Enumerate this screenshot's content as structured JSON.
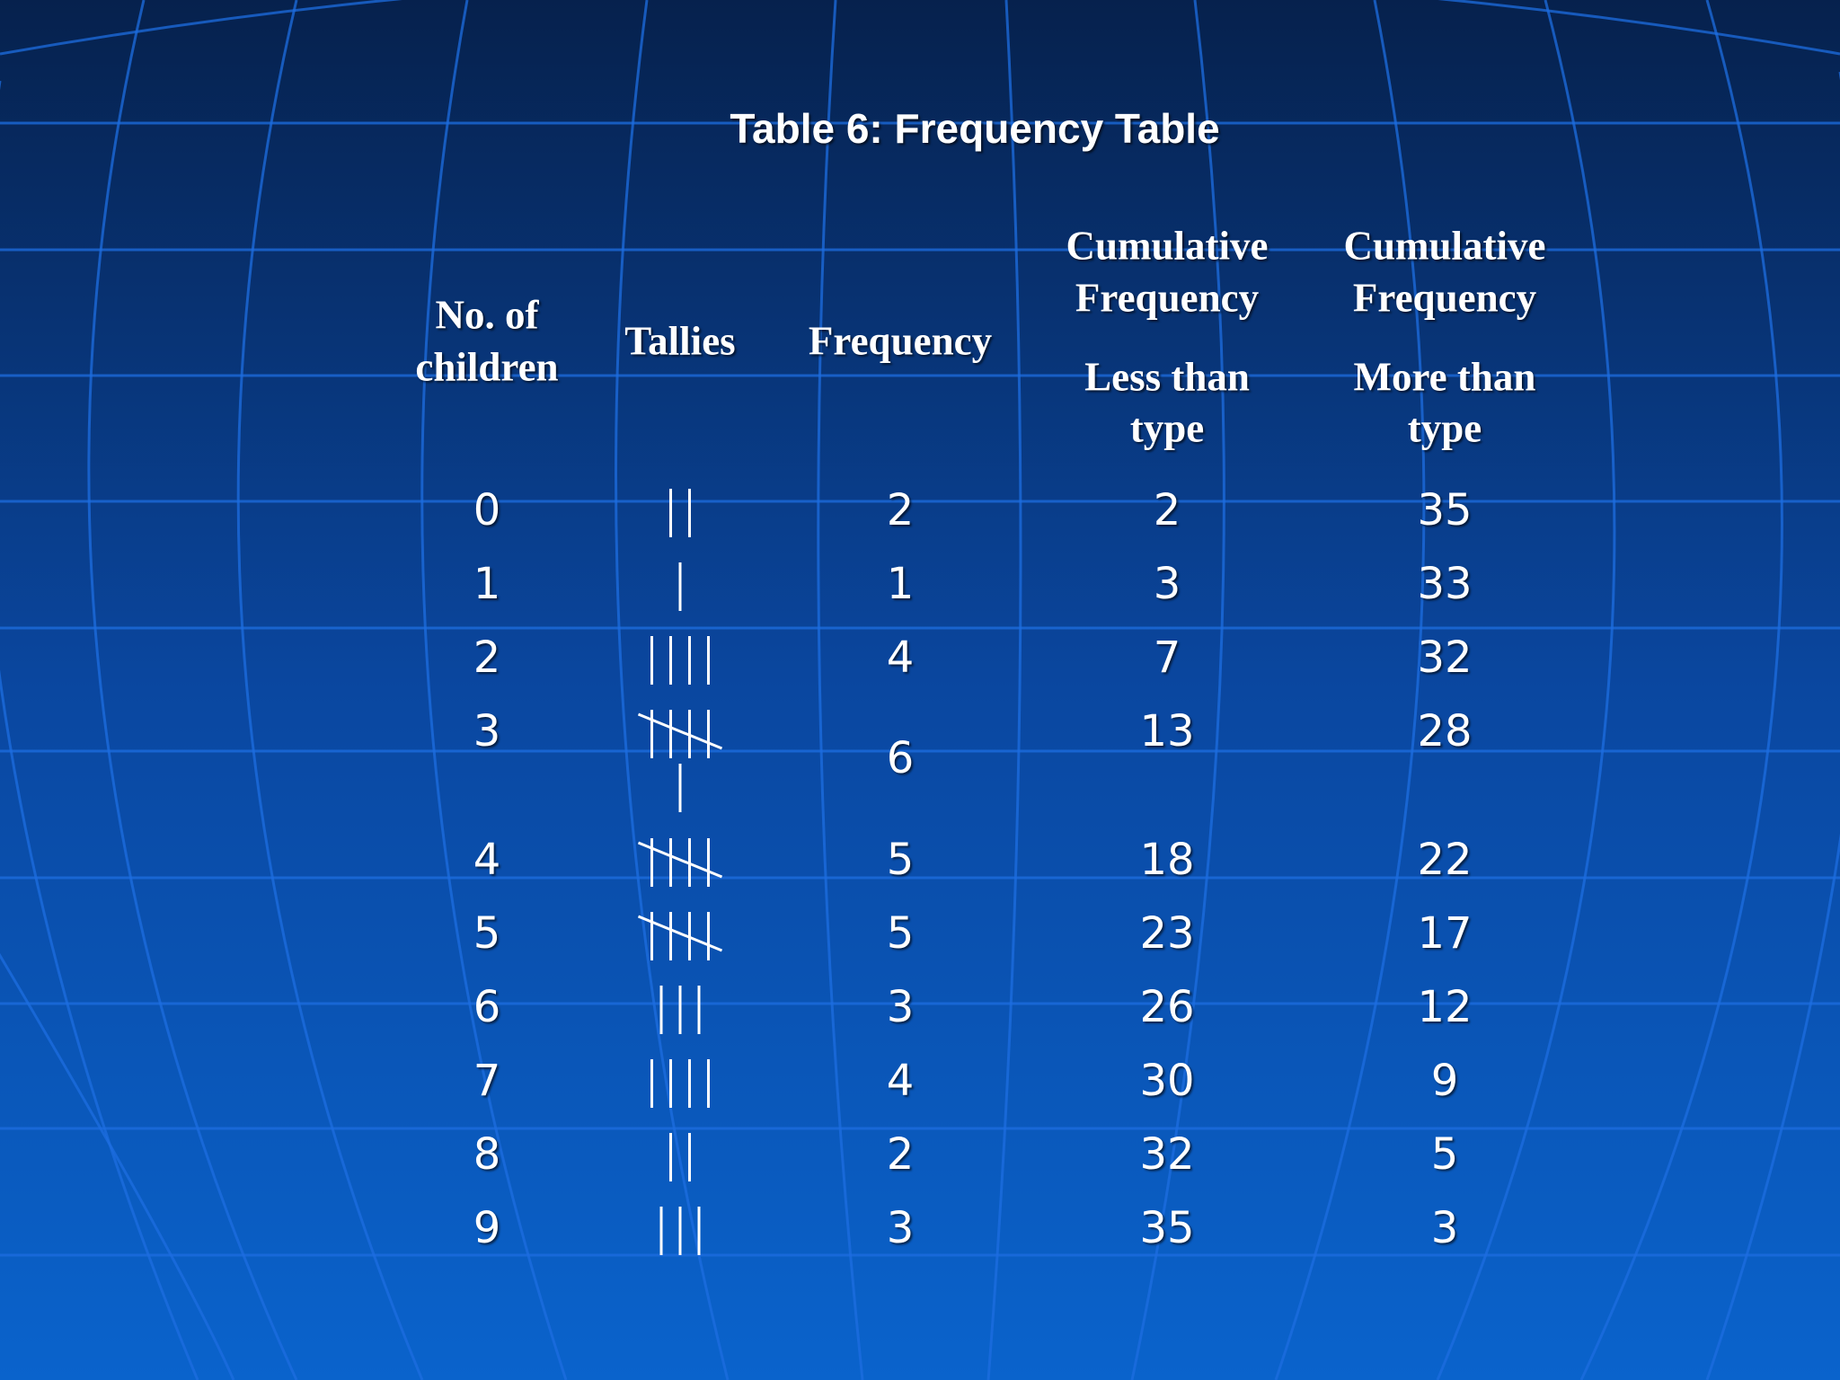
{
  "title": "Table 6: Frequency Table",
  "table": {
    "headers": [
      {
        "main": [
          "No. of",
          "children"
        ]
      },
      {
        "main": [
          "Tallies"
        ]
      },
      {
        "main": [
          "Frequency"
        ]
      },
      {
        "main": [
          "Cumulative",
          "Frequency"
        ],
        "sub": [
          "Less than",
          "type"
        ]
      },
      {
        "main": [
          "Cumulative",
          "Frequency"
        ],
        "sub": [
          "More than",
          "type"
        ]
      }
    ],
    "rows": [
      {
        "children": 0,
        "frequency": 2,
        "less_than": 2,
        "more_than": 35
      },
      {
        "children": 1,
        "frequency": 1,
        "less_than": 3,
        "more_than": 33
      },
      {
        "children": 2,
        "frequency": 4,
        "less_than": 7,
        "more_than": 32
      },
      {
        "children": 3,
        "frequency": 6,
        "less_than": 13,
        "more_than": 28
      },
      {
        "children": 4,
        "frequency": 5,
        "less_than": 18,
        "more_than": 22
      },
      {
        "children": 5,
        "frequency": 5,
        "less_than": 23,
        "more_than": 17
      },
      {
        "children": 6,
        "frequency": 3,
        "less_than": 26,
        "more_than": 12
      },
      {
        "children": 7,
        "frequency": 4,
        "less_than": 30,
        "more_than": 9
      },
      {
        "children": 8,
        "frequency": 2,
        "less_than": 32,
        "more_than": 5
      },
      {
        "children": 9,
        "frequency": 3,
        "less_than": 35,
        "more_than": 3
      }
    ]
  }
}
